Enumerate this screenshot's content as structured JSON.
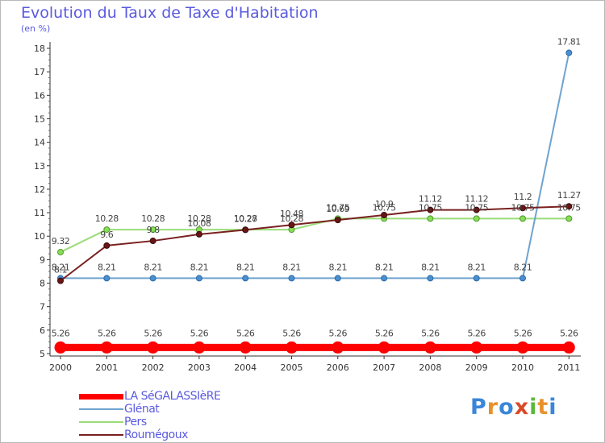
{
  "header": {
    "title": "Evolution du Taux de Taxe d'Habitation",
    "unit": "(en %)"
  },
  "logo": {
    "text": "Proxiti",
    "letters": [
      "P",
      "r",
      "o",
      "x",
      "i",
      "t",
      "i"
    ],
    "colors": [
      "#3a86d9",
      "#e8912b",
      "#3a86d9",
      "#d94a2a",
      "#5cb83a",
      "#e8912b",
      "#3a86d9"
    ]
  },
  "chart_data": {
    "type": "line",
    "title": "Evolution du Taux de Taxe d'Habitation",
    "ylabel": "(en %)",
    "xlabel": "",
    "x": [
      "2000",
      "2001",
      "2002",
      "2003",
      "2004",
      "2005",
      "2006",
      "2007",
      "2008",
      "2009",
      "2010",
      "2011"
    ],
    "ylim": [
      5,
      18
    ],
    "yticks": [
      "5",
      "6",
      "7",
      "8",
      "9",
      "10",
      "11",
      "12",
      "13",
      "14",
      "15",
      "16",
      "17",
      "18"
    ],
    "grid": false,
    "legend_position": "bottom-left",
    "series": [
      {
        "name": "LA SéGALASSIèRE",
        "color": "#ff0000",
        "values": [
          5.26,
          5.26,
          5.26,
          5.26,
          5.26,
          5.26,
          5.26,
          5.26,
          5.26,
          5.26,
          5.26,
          5.26
        ],
        "labels": [
          "5.26",
          "5.26",
          "5.26",
          "5.26",
          "5.26",
          "5.26",
          "5.26",
          "5.26",
          "5.26",
          "5.26",
          "5.26",
          "5.26"
        ]
      },
      {
        "name": "Glénat",
        "color": "#6fa3cf",
        "values": [
          8.21,
          8.21,
          8.21,
          8.21,
          8.21,
          8.21,
          8.21,
          8.21,
          8.21,
          8.21,
          8.21,
          17.81
        ],
        "labels": [
          "8.21",
          "8.21",
          "8.21",
          "8.21",
          "8.21",
          "8.21",
          "8.21",
          "8.21",
          "8.21",
          "8.21",
          "8.21",
          "17.81"
        ]
      },
      {
        "name": "Pers",
        "color": "#99dd77",
        "values": [
          9.32,
          10.28,
          10.28,
          10.28,
          10.28,
          10.28,
          10.75,
          10.75,
          10.75,
          10.75,
          10.75,
          10.75
        ],
        "labels": [
          "9.32",
          "10.28",
          "10.28",
          "10.28",
          "10.28",
          "10.28",
          "10.75",
          "10.75",
          "10.75",
          "10.75",
          "10.75",
          "10.75"
        ]
      },
      {
        "name": "Roumégoux",
        "color": "#7a2020",
        "values": [
          8.1,
          9.6,
          9.8,
          10.08,
          10.27,
          10.48,
          10.69,
          10.9,
          11.12,
          11.12,
          11.2,
          11.27
        ],
        "labels": [
          "8.1",
          "9.6",
          "9.8",
          "10.08",
          "10.27",
          "10.48",
          "10.69",
          "10.9",
          "11.12",
          "11.12",
          "11.2",
          "11.27"
        ]
      }
    ]
  }
}
